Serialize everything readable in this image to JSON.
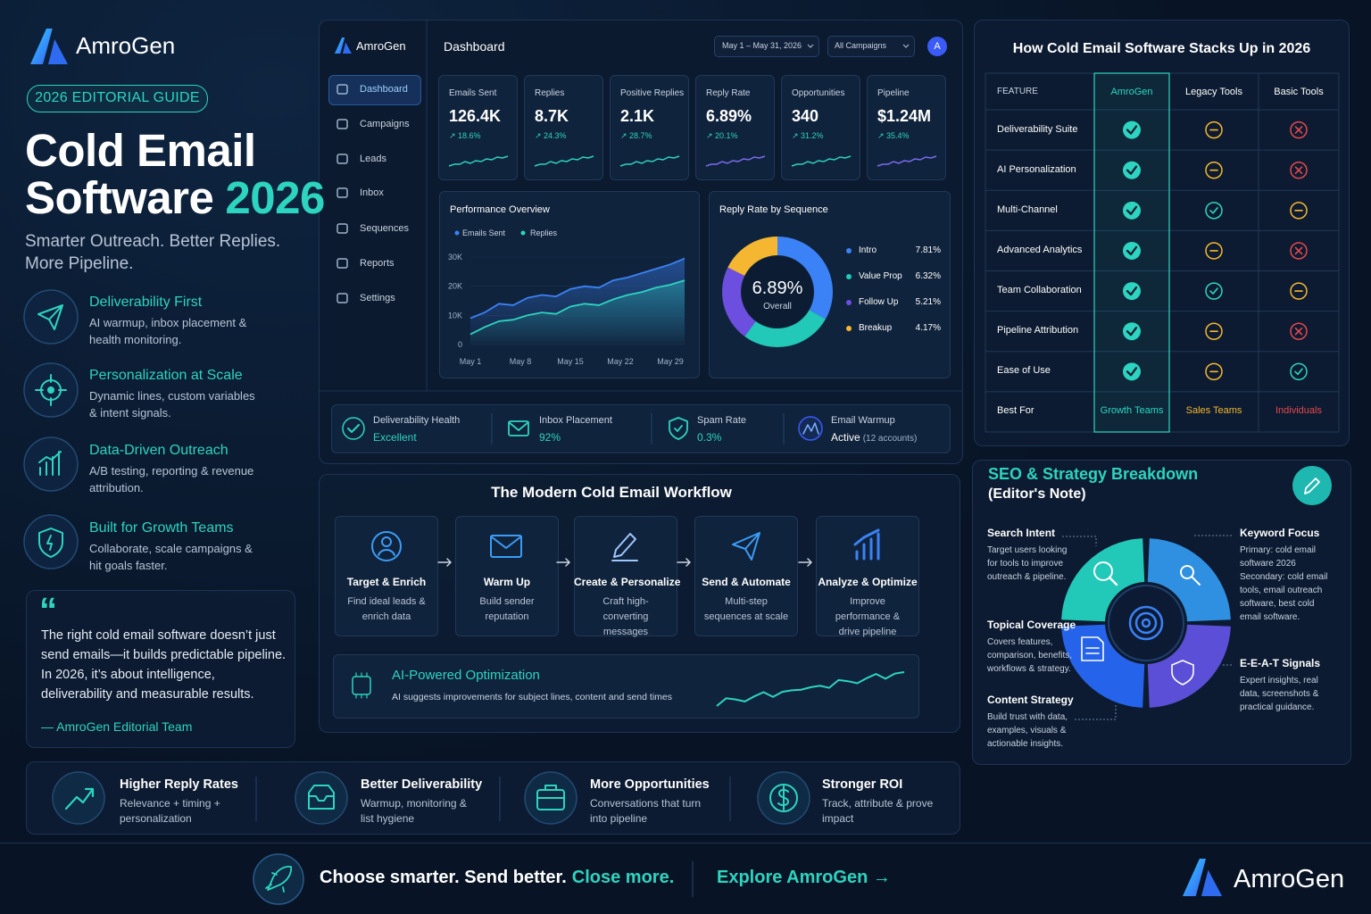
{
  "brand": "AmroGen",
  "hero": {
    "badge": "2026 EDITORIAL GUIDE",
    "title_line1": "Cold Email",
    "title_line2": "Software",
    "title_year": "2026",
    "subtitle": "Smarter Outreach. Better Replies. More Pipeline."
  },
  "features": [
    {
      "title": "Deliverability First",
      "desc": "AI warmup, inbox placement & health monitoring."
    },
    {
      "title": "Personalization at Scale",
      "desc": "Dynamic lines, custom variables & intent signals."
    },
    {
      "title": "Data-Driven Outreach",
      "desc": "A/B testing, reporting & revenue attribution."
    },
    {
      "title": "Built for Growth Teams",
      "desc": "Collaborate, scale campaigns & hit goals faster."
    }
  ],
  "quote": {
    "mark": "“",
    "text": "The right cold email software doesn’t just send emails—it builds predictable pipeline. In 2026, it’s about intelligence, deliverability and measurable results.",
    "author": "— AmroGen Editorial Team"
  },
  "dashboard": {
    "brand": "AmroGen",
    "title": "Dashboard",
    "date_range": "May 1 – May 31, 2026",
    "filter": "All Campaigns",
    "avatar": "A",
    "nav": [
      "Dashboard",
      "Campaigns",
      "Leads",
      "Inbox",
      "Sequences",
      "Reports",
      "Settings"
    ],
    "kpis": [
      {
        "label": "Emails Sent",
        "value": "126.4K",
        "change": "↗ 18.6%"
      },
      {
        "label": "Replies",
        "value": "8.7K",
        "change": "↗ 24.3%"
      },
      {
        "label": "Positive Replies",
        "value": "2.1K",
        "change": "↗ 28.7%"
      },
      {
        "label": "Reply Rate",
        "value": "6.89%",
        "change": "↗ 20.1%"
      },
      {
        "label": "Opportunities",
        "value": "340",
        "change": "↗ 31.2%"
      },
      {
        "label": "Pipeline",
        "value": "$1.24M",
        "change": "↗ 35.4%"
      }
    ],
    "health": [
      {
        "label": "Deliverability Health",
        "value": "Excellent"
      },
      {
        "label": "Inbox Placement",
        "value": "92%"
      },
      {
        "label": "Spam Rate",
        "value": "0.3%"
      },
      {
        "label": "Email Warmup",
        "value": "Active",
        "note": "(12 accounts)"
      }
    ]
  },
  "chart_data": [
    {
      "type": "area",
      "title": "Performance Overview",
      "x": [
        1,
        3,
        5,
        7,
        9,
        11,
        13,
        15,
        17,
        19,
        21,
        23,
        25,
        27,
        29,
        31
      ],
      "xlim": [
        1,
        31
      ],
      "xticks": [
        {
          "value": 1,
          "label": "May 1"
        },
        {
          "value": 8,
          "label": "May 8"
        },
        {
          "value": 15,
          "label": "May 15"
        },
        {
          "value": 22,
          "label": "May 22"
        },
        {
          "value": 29,
          "label": "May 29"
        }
      ],
      "ylim": [
        0,
        30000
      ],
      "yticks": [
        {
          "value": 0,
          "label": "0"
        },
        {
          "value": 10000,
          "label": "10K"
        },
        {
          "value": 20000,
          "label": "20K"
        },
        {
          "value": 30000,
          "label": "30K"
        }
      ],
      "grid": true,
      "series": [
        {
          "name": "Emails Sent",
          "color": "#3b82f6",
          "values": [
            9000,
            11000,
            14000,
            13500,
            16000,
            17000,
            16500,
            19000,
            20000,
            19500,
            22000,
            23000,
            24500,
            26000,
            27500,
            29500
          ]
        },
        {
          "name": "Replies",
          "color": "#2dd4bf",
          "values": [
            3500,
            6000,
            8000,
            8500,
            10000,
            11000,
            10500,
            13000,
            14000,
            13500,
            15500,
            17000,
            18000,
            19500,
            20500,
            22000
          ]
        }
      ]
    },
    {
      "type": "donut",
      "title": "Reply Rate by Sequence",
      "center_value": "6.89%",
      "center_label": "Overall",
      "categories": [
        "Intro",
        "Value Prop",
        "Follow Up",
        "Breakup"
      ],
      "values": [
        7.81,
        6.32,
        5.21,
        4.17
      ],
      "value_labels": [
        "7.81%",
        "6.32%",
        "5.21%",
        "4.17%"
      ],
      "colors": [
        "#3b82f6",
        "#22c9b8",
        "#6d4fe0",
        "#f5b731"
      ]
    }
  ],
  "comparison": {
    "title": "How Cold Email Software Stacks Up in 2026",
    "columns": [
      "FEATURE",
      "AmroGen",
      "Legacy Tools",
      "Basic Tools"
    ],
    "rows": [
      {
        "feature": "Deliverability Suite",
        "status": [
          "check",
          "partial",
          "cross"
        ]
      },
      {
        "feature": "AI Personalization",
        "status": [
          "check",
          "partial",
          "cross"
        ]
      },
      {
        "feature": "Multi-Channel",
        "status": [
          "check",
          "check",
          "partial"
        ]
      },
      {
        "feature": "Advanced Analytics",
        "status": [
          "check",
          "partial",
          "cross"
        ]
      },
      {
        "feature": "Team Collaboration",
        "status": [
          "check",
          "check",
          "partial"
        ]
      },
      {
        "feature": "Pipeline Attribution",
        "status": [
          "check",
          "partial",
          "cross"
        ]
      },
      {
        "feature": "Ease of Use",
        "status": [
          "check",
          "partial",
          "check"
        ]
      }
    ],
    "best_for": {
      "label": "Best For",
      "values": [
        "Growth Teams",
        "Sales Teams",
        "Individuals"
      ]
    }
  },
  "workflow": {
    "title": "The Modern Cold Email Workflow",
    "steps": [
      {
        "title": "Target & Enrich",
        "desc": "Find ideal leads & enrich data"
      },
      {
        "title": "Warm Up",
        "desc": "Build sender reputation"
      },
      {
        "title": "Create & Personalize",
        "desc": "Craft high-converting messages"
      },
      {
        "title": "Send & Automate",
        "desc": "Multi-step sequences at scale"
      },
      {
        "title": "Analyze & Optimize",
        "desc": "Improve performance & drive pipeline"
      }
    ],
    "ai": {
      "title": "AI-Powered Optimization",
      "desc": "AI suggests improvements for subject lines, content and send times"
    }
  },
  "seo": {
    "title": "SEO & Strategy Breakdown",
    "subtitle": "(Editor's Note)",
    "items": [
      {
        "title": "Search Intent",
        "desc": "Target users looking for tools to improve outreach & pipeline."
      },
      {
        "title": "Keyword Focus",
        "desc": "Primary: cold email software 2026 Secondary: cold email tools, email outreach software, best cold email software."
      },
      {
        "title": "Topical Coverage",
        "desc": "Covers features, comparison, benefits, workflows & strategy."
      },
      {
        "title": "E-E-A-T Signals",
        "desc": "Expert insights, real data, screenshots & practical guidance."
      },
      {
        "title": "Content Strategy",
        "desc": "Build trust with data, examples, visuals & actionable insights."
      }
    ]
  },
  "benefits": [
    {
      "title": "Higher Reply Rates",
      "desc": "Relevance + timing + personalization"
    },
    {
      "title": "Better Deliverability",
      "desc": "Warmup, monitoring & list hygiene"
    },
    {
      "title": "More Opportunities",
      "desc": "Conversations that turn into pipeline"
    },
    {
      "title": "Stronger ROI",
      "desc": "Track, attribute & prove impact"
    }
  ],
  "footer": {
    "cta_start": "Choose smarter. Send better.",
    "cta_accent": "Close more.",
    "explore": "Explore AmroGen →",
    "brand": "AmroGen"
  }
}
